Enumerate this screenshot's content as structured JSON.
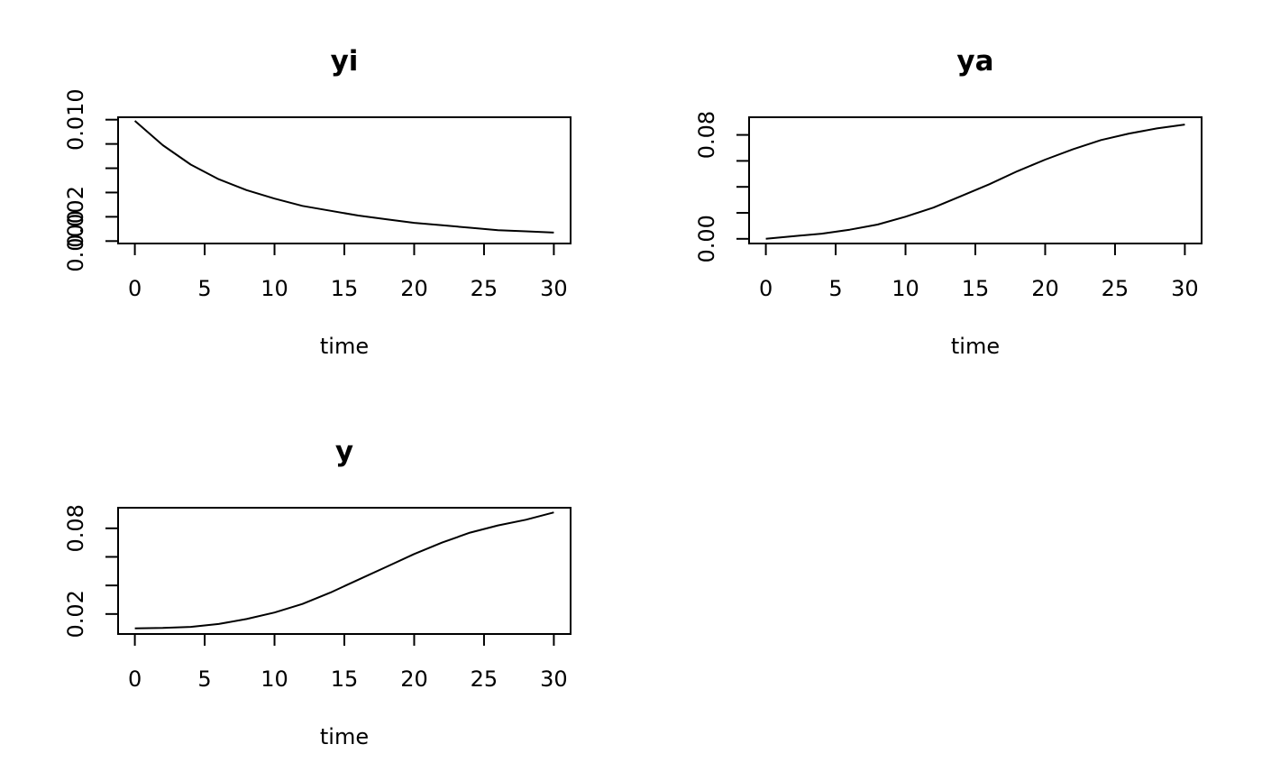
{
  "chart_data": [
    {
      "type": "line",
      "title": "yi",
      "xlabel": "time",
      "ylabel": "",
      "xlim": [
        -1.2,
        31.2
      ],
      "ylim": [
        -0.0002,
        0.0102
      ],
      "xticks": [
        0,
        5,
        10,
        15,
        20,
        25,
        30
      ],
      "xtick_labels": [
        "0",
        "5",
        "10",
        "15",
        "20",
        "25",
        "30"
      ],
      "yticks": [
        0.0,
        0.002,
        0.004,
        0.006,
        0.008,
        0.01
      ],
      "ytick_labels": [
        "0.000",
        "0.002",
        "",
        "",
        "",
        "0.010"
      ],
      "grid": false,
      "series": [
        {
          "x": [
            0,
            2,
            4,
            6,
            8,
            10,
            12,
            14,
            16,
            18,
            20,
            22,
            24,
            26,
            28,
            30
          ],
          "y": [
            0.0099,
            0.0079,
            0.0063,
            0.0051,
            0.0042,
            0.0035,
            0.0029,
            0.0025,
            0.0021,
            0.0018,
            0.0015,
            0.0013,
            0.0011,
            0.0009,
            0.0008,
            0.0007
          ]
        }
      ]
    },
    {
      "type": "line",
      "title": "ya",
      "xlabel": "time",
      "ylabel": "",
      "xlim": [
        -1.2,
        31.2
      ],
      "ylim": [
        -0.0036,
        0.0936
      ],
      "xticks": [
        0,
        5,
        10,
        15,
        20,
        25,
        30
      ],
      "xtick_labels": [
        "0",
        "5",
        "10",
        "15",
        "20",
        "25",
        "30"
      ],
      "yticks": [
        0.0,
        0.02,
        0.04,
        0.06,
        0.08
      ],
      "ytick_labels": [
        "0.00",
        "",
        "",
        "",
        "0.08"
      ],
      "grid": false,
      "series": [
        {
          "x": [
            0,
            2,
            4,
            6,
            8,
            10,
            12,
            14,
            16,
            18,
            20,
            22,
            24,
            26,
            28,
            30
          ],
          "y": [
            0.0,
            0.002,
            0.004,
            0.007,
            0.011,
            0.017,
            0.024,
            0.033,
            0.042,
            0.052,
            0.061,
            0.069,
            0.076,
            0.081,
            0.085,
            0.088
          ]
        }
      ]
    },
    {
      "type": "line",
      "title": "y",
      "xlabel": "time",
      "ylabel": "",
      "xlim": [
        -1.2,
        31.2
      ],
      "ylim": [
        0.006,
        0.0944
      ],
      "xticks": [
        0,
        5,
        10,
        15,
        20,
        25,
        30
      ],
      "xtick_labels": [
        "0",
        "5",
        "10",
        "15",
        "20",
        "25",
        "30"
      ],
      "yticks": [
        0.02,
        0.04,
        0.06,
        0.08
      ],
      "ytick_labels": [
        "0.02",
        "",
        "",
        "0.08"
      ],
      "grid": false,
      "series": [
        {
          "x": [
            0,
            2,
            4,
            6,
            8,
            10,
            12,
            14,
            16,
            18,
            20,
            22,
            24,
            26,
            28,
            30
          ],
          "y": [
            0.0099,
            0.0102,
            0.011,
            0.013,
            0.0165,
            0.021,
            0.027,
            0.035,
            0.044,
            0.053,
            0.062,
            0.07,
            0.077,
            0.082,
            0.086,
            0.0911
          ]
        }
      ]
    }
  ],
  "colors": {
    "line": "#000000",
    "frame": "#000000",
    "background": "#ffffff"
  }
}
